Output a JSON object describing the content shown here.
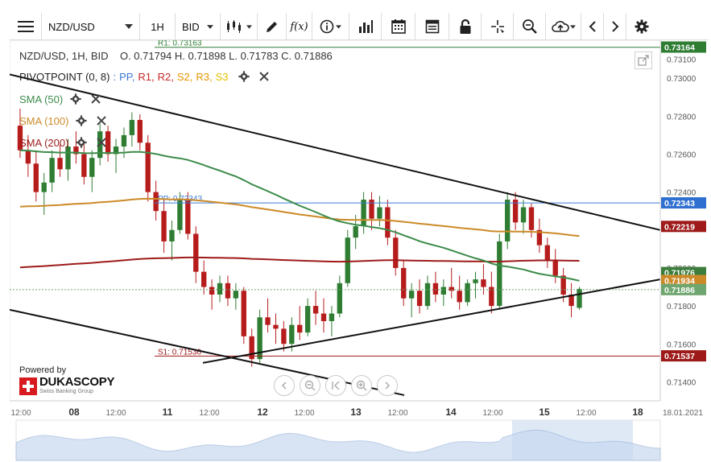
{
  "toolbar": {
    "symbol": "NZD/USD",
    "timeframe": "1H",
    "side": "BID"
  },
  "legend": {
    "ohlc_line": "NZD/USD, 1H, BID    O. 0.71794 H. 0.71898 L. 0.71783 C. 0.71886",
    "pivot_name": "PIVOTPOINT (0, 8)",
    "pivot_sep": ":",
    "pivot_items": [
      {
        "label": "PP,",
        "color": "#3a7bd5"
      },
      {
        "label": "R1,",
        "color": "#c62828"
      },
      {
        "label": "R2,",
        "color": "#c62828"
      },
      {
        "label": "S2,",
        "color": "#e69500"
      },
      {
        "label": "R3,",
        "color": "#e69500"
      },
      {
        "label": "S3",
        "color": "#e6c000"
      }
    ],
    "sma50": "SMA (50)",
    "sma100": "SMA (100)",
    "sma200": "SMA (200)"
  },
  "lines": {
    "r1_label": "R1: 0.73163",
    "pp_label": "PP: 0.72343",
    "s1_label": "S1: 0.71536"
  },
  "price_axis": {
    "ticks": [
      "0.73100",
      "0.73000",
      "0.72800",
      "0.72600",
      "0.72400",
      "0.72000",
      "0.71800",
      "0.71600",
      "0.71400"
    ],
    "tags": [
      {
        "value": "0.73164",
        "color": "#2e7d32"
      },
      {
        "value": "0.72343",
        "color": "#2f6fd0"
      },
      {
        "value": "0.72219",
        "color": "#9e1a1a"
      },
      {
        "value": "0.71976",
        "color": "#3c7d3c"
      },
      {
        "value": "0.71934",
        "color": "#cc8a28"
      },
      {
        "value": "0.71886",
        "color": "#6fa66f"
      },
      {
        "value": "0.71537",
        "color": "#9e1a1a"
      }
    ]
  },
  "time_axis": {
    "labels": [
      "12:00",
      "08",
      "12:00",
      "11",
      "12:00",
      "12",
      "12:00",
      "13",
      "12:00",
      "14",
      "12:00",
      "15",
      "12:00",
      "18",
      "18.01.2021"
    ]
  },
  "branding": {
    "powered_by": "Powered by",
    "name": "DUKASCOPY",
    "tagline": "Swiss Banking Group"
  },
  "colors": {
    "sma50": "#3c8c4a",
    "sma100": "#cc8a28",
    "sma200": "#9e1a1a",
    "candle_up": "#2e7d32",
    "candle_down": "#b71c1c"
  },
  "chart_data": {
    "type": "candlestick",
    "symbol": "NZD/USD",
    "timeframe": "1H",
    "ylim": [
      0.713,
      0.732
    ],
    "candles": [
      [
        0.7275,
        0.7284,
        0.7258,
        0.7262
      ],
      [
        0.7262,
        0.727,
        0.7248,
        0.7255
      ],
      [
        0.7255,
        0.7262,
        0.7235,
        0.724
      ],
      [
        0.724,
        0.725,
        0.7228,
        0.7245
      ],
      [
        0.7245,
        0.7262,
        0.724,
        0.7258
      ],
      [
        0.7258,
        0.7265,
        0.7248,
        0.7252
      ],
      [
        0.7252,
        0.7268,
        0.7246,
        0.7264
      ],
      [
        0.7264,
        0.7272,
        0.7255,
        0.726
      ],
      [
        0.726,
        0.7266,
        0.7244,
        0.7248
      ],
      [
        0.7248,
        0.7262,
        0.724,
        0.7258
      ],
      [
        0.7258,
        0.7276,
        0.7254,
        0.7272
      ],
      [
        0.7272,
        0.7275,
        0.7256,
        0.726
      ],
      [
        0.726,
        0.7268,
        0.725,
        0.7264
      ],
      [
        0.7264,
        0.7274,
        0.7258,
        0.727
      ],
      [
        0.727,
        0.7282,
        0.7264,
        0.7278
      ],
      [
        0.7278,
        0.7281,
        0.7262,
        0.7266
      ],
      [
        0.7266,
        0.727,
        0.7235,
        0.724
      ],
      [
        0.724,
        0.7246,
        0.7225,
        0.723
      ],
      [
        0.723,
        0.7236,
        0.7208,
        0.7214
      ],
      [
        0.7214,
        0.7225,
        0.7204,
        0.722
      ],
      [
        0.722,
        0.724,
        0.7218,
        0.7236
      ],
      [
        0.7236,
        0.724,
        0.7215,
        0.7218
      ],
      [
        0.7218,
        0.7222,
        0.7192,
        0.7198
      ],
      [
        0.7198,
        0.7204,
        0.7186,
        0.719
      ],
      [
        0.719,
        0.7194,
        0.7178,
        0.7186
      ],
      [
        0.7186,
        0.7196,
        0.7182,
        0.7192
      ],
      [
        0.7192,
        0.7196,
        0.718,
        0.7184
      ],
      [
        0.7184,
        0.7192,
        0.7178,
        0.7188
      ],
      [
        0.7188,
        0.719,
        0.716,
        0.7164
      ],
      [
        0.7164,
        0.7168,
        0.7148,
        0.7152
      ],
      [
        0.7152,
        0.7178,
        0.715,
        0.7174
      ],
      [
        0.7174,
        0.7184,
        0.7166,
        0.717
      ],
      [
        0.717,
        0.7176,
        0.716,
        0.7168
      ],
      [
        0.7168,
        0.7172,
        0.7156,
        0.716
      ],
      [
        0.716,
        0.7174,
        0.7156,
        0.717
      ],
      [
        0.717,
        0.718,
        0.7162,
        0.7166
      ],
      [
        0.7166,
        0.7184,
        0.7164,
        0.718
      ],
      [
        0.718,
        0.7188,
        0.717,
        0.7176
      ],
      [
        0.7176,
        0.7184,
        0.7166,
        0.7172
      ],
      [
        0.7172,
        0.718,
        0.7164,
        0.7176
      ],
      [
        0.7176,
        0.7196,
        0.7174,
        0.7192
      ],
      [
        0.7192,
        0.722,
        0.719,
        0.7216
      ],
      [
        0.7216,
        0.7228,
        0.721,
        0.7222
      ],
      [
        0.7222,
        0.724,
        0.7218,
        0.7236
      ],
      [
        0.7236,
        0.724,
        0.722,
        0.7226
      ],
      [
        0.7226,
        0.7238,
        0.7222,
        0.7232
      ],
      [
        0.7232,
        0.7236,
        0.7212,
        0.7216
      ],
      [
        0.7216,
        0.722,
        0.7196,
        0.72
      ],
      [
        0.72,
        0.7204,
        0.718,
        0.7184
      ],
      [
        0.7184,
        0.7192,
        0.7174,
        0.7188
      ],
      [
        0.7188,
        0.7194,
        0.7176,
        0.718
      ],
      [
        0.718,
        0.7196,
        0.7178,
        0.7192
      ],
      [
        0.7192,
        0.7198,
        0.7182,
        0.7186
      ],
      [
        0.7186,
        0.7194,
        0.718,
        0.719
      ],
      [
        0.719,
        0.72,
        0.7184,
        0.7188
      ],
      [
        0.7188,
        0.7196,
        0.7178,
        0.7182
      ],
      [
        0.7182,
        0.7194,
        0.718,
        0.7192
      ],
      [
        0.7192,
        0.7198,
        0.7184,
        0.7194
      ],
      [
        0.7194,
        0.7202,
        0.7186,
        0.719
      ],
      [
        0.719,
        0.7198,
        0.7176,
        0.718
      ],
      [
        0.718,
        0.7218,
        0.7178,
        0.7214
      ],
      [
        0.7214,
        0.724,
        0.721,
        0.7236
      ],
      [
        0.7236,
        0.724,
        0.722,
        0.7224
      ],
      [
        0.7224,
        0.7236,
        0.7218,
        0.7232
      ],
      [
        0.7232,
        0.7234,
        0.7216,
        0.722
      ],
      [
        0.722,
        0.7226,
        0.7208,
        0.7212
      ],
      [
        0.7212,
        0.7216,
        0.72,
        0.7204
      ],
      [
        0.7204,
        0.721,
        0.7192,
        0.7196
      ],
      [
        0.7196,
        0.72,
        0.7182,
        0.7186
      ],
      [
        0.7186,
        0.7192,
        0.7174,
        0.718
      ],
      [
        0.7179,
        0.719,
        0.7178,
        0.7189
      ]
    ],
    "levels": {
      "R1": 0.73163,
      "PP": 0.72343,
      "S1": 0.71536
    }
  }
}
